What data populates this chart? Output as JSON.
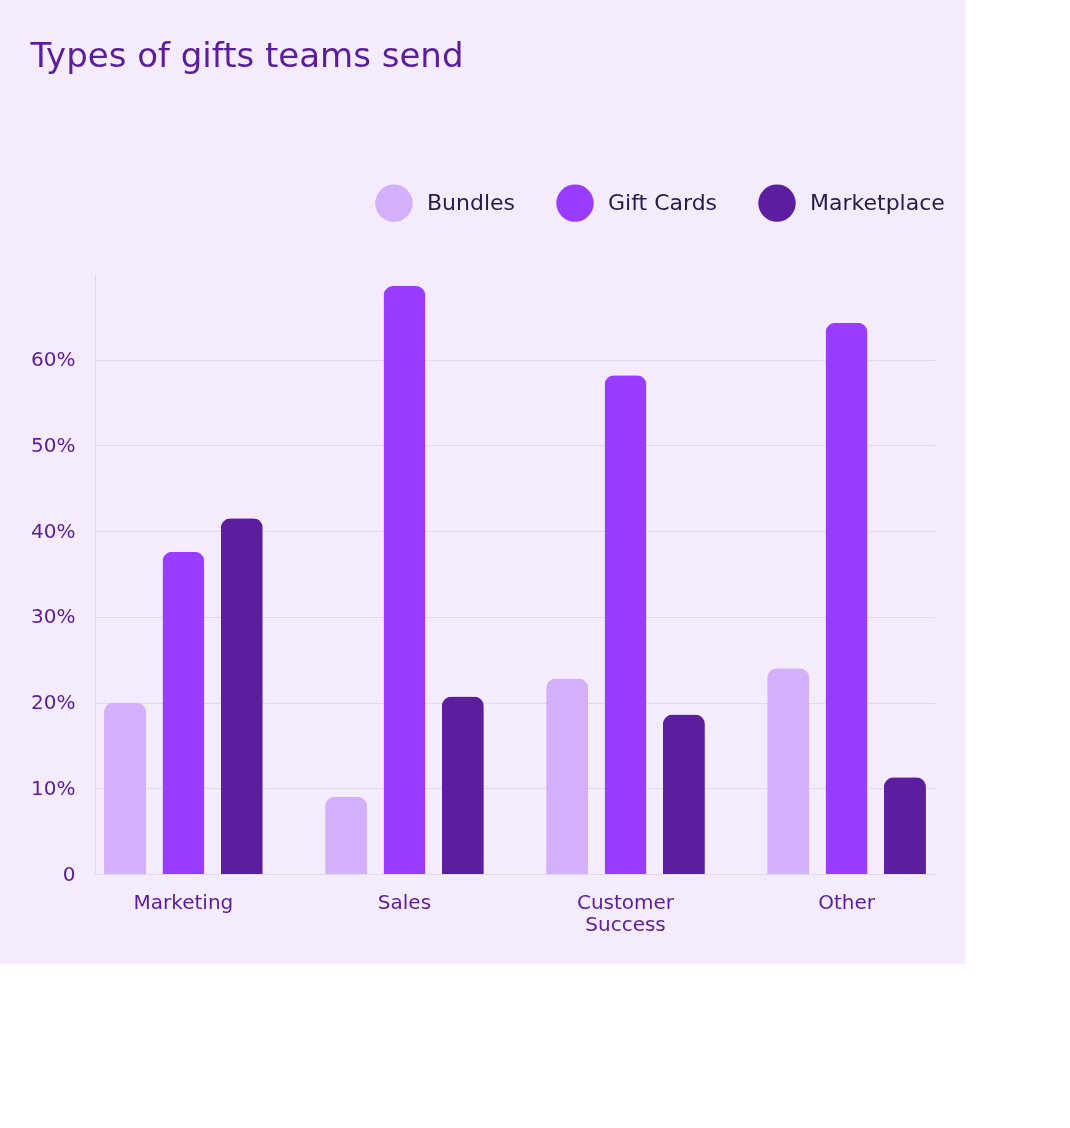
{
  "chart_data": {
    "type": "bar",
    "title": "Types of gifts teams send",
    "categories": [
      "Marketing",
      "Sales",
      "Customer Success",
      "Other"
    ],
    "series": [
      {
        "name": "Bundles",
        "color": "#d4b0fc",
        "values": [
          20,
          9,
          22.8,
          24
        ]
      },
      {
        "name": "Gift Cards",
        "color": "#9a3cff",
        "values": [
          37.6,
          68.6,
          58.2,
          64.3
        ]
      },
      {
        "name": "Marketplace",
        "color": "#5c1e9e",
        "values": [
          41.5,
          20.7,
          18.6,
          11.3
        ]
      }
    ],
    "ylim": [
      0,
      70
    ],
    "yticks": [
      0,
      {
        "value": 10,
        "label": "10%"
      },
      {
        "value": 20,
        "label": "20%"
      },
      {
        "value": 30,
        "label": "30%"
      },
      {
        "value": 40,
        "label": "40%"
      },
      {
        "value": 50,
        "label": "50%"
      },
      {
        "value": 60,
        "label": "60%"
      }
    ],
    "grid": "y",
    "legend": "top right"
  }
}
